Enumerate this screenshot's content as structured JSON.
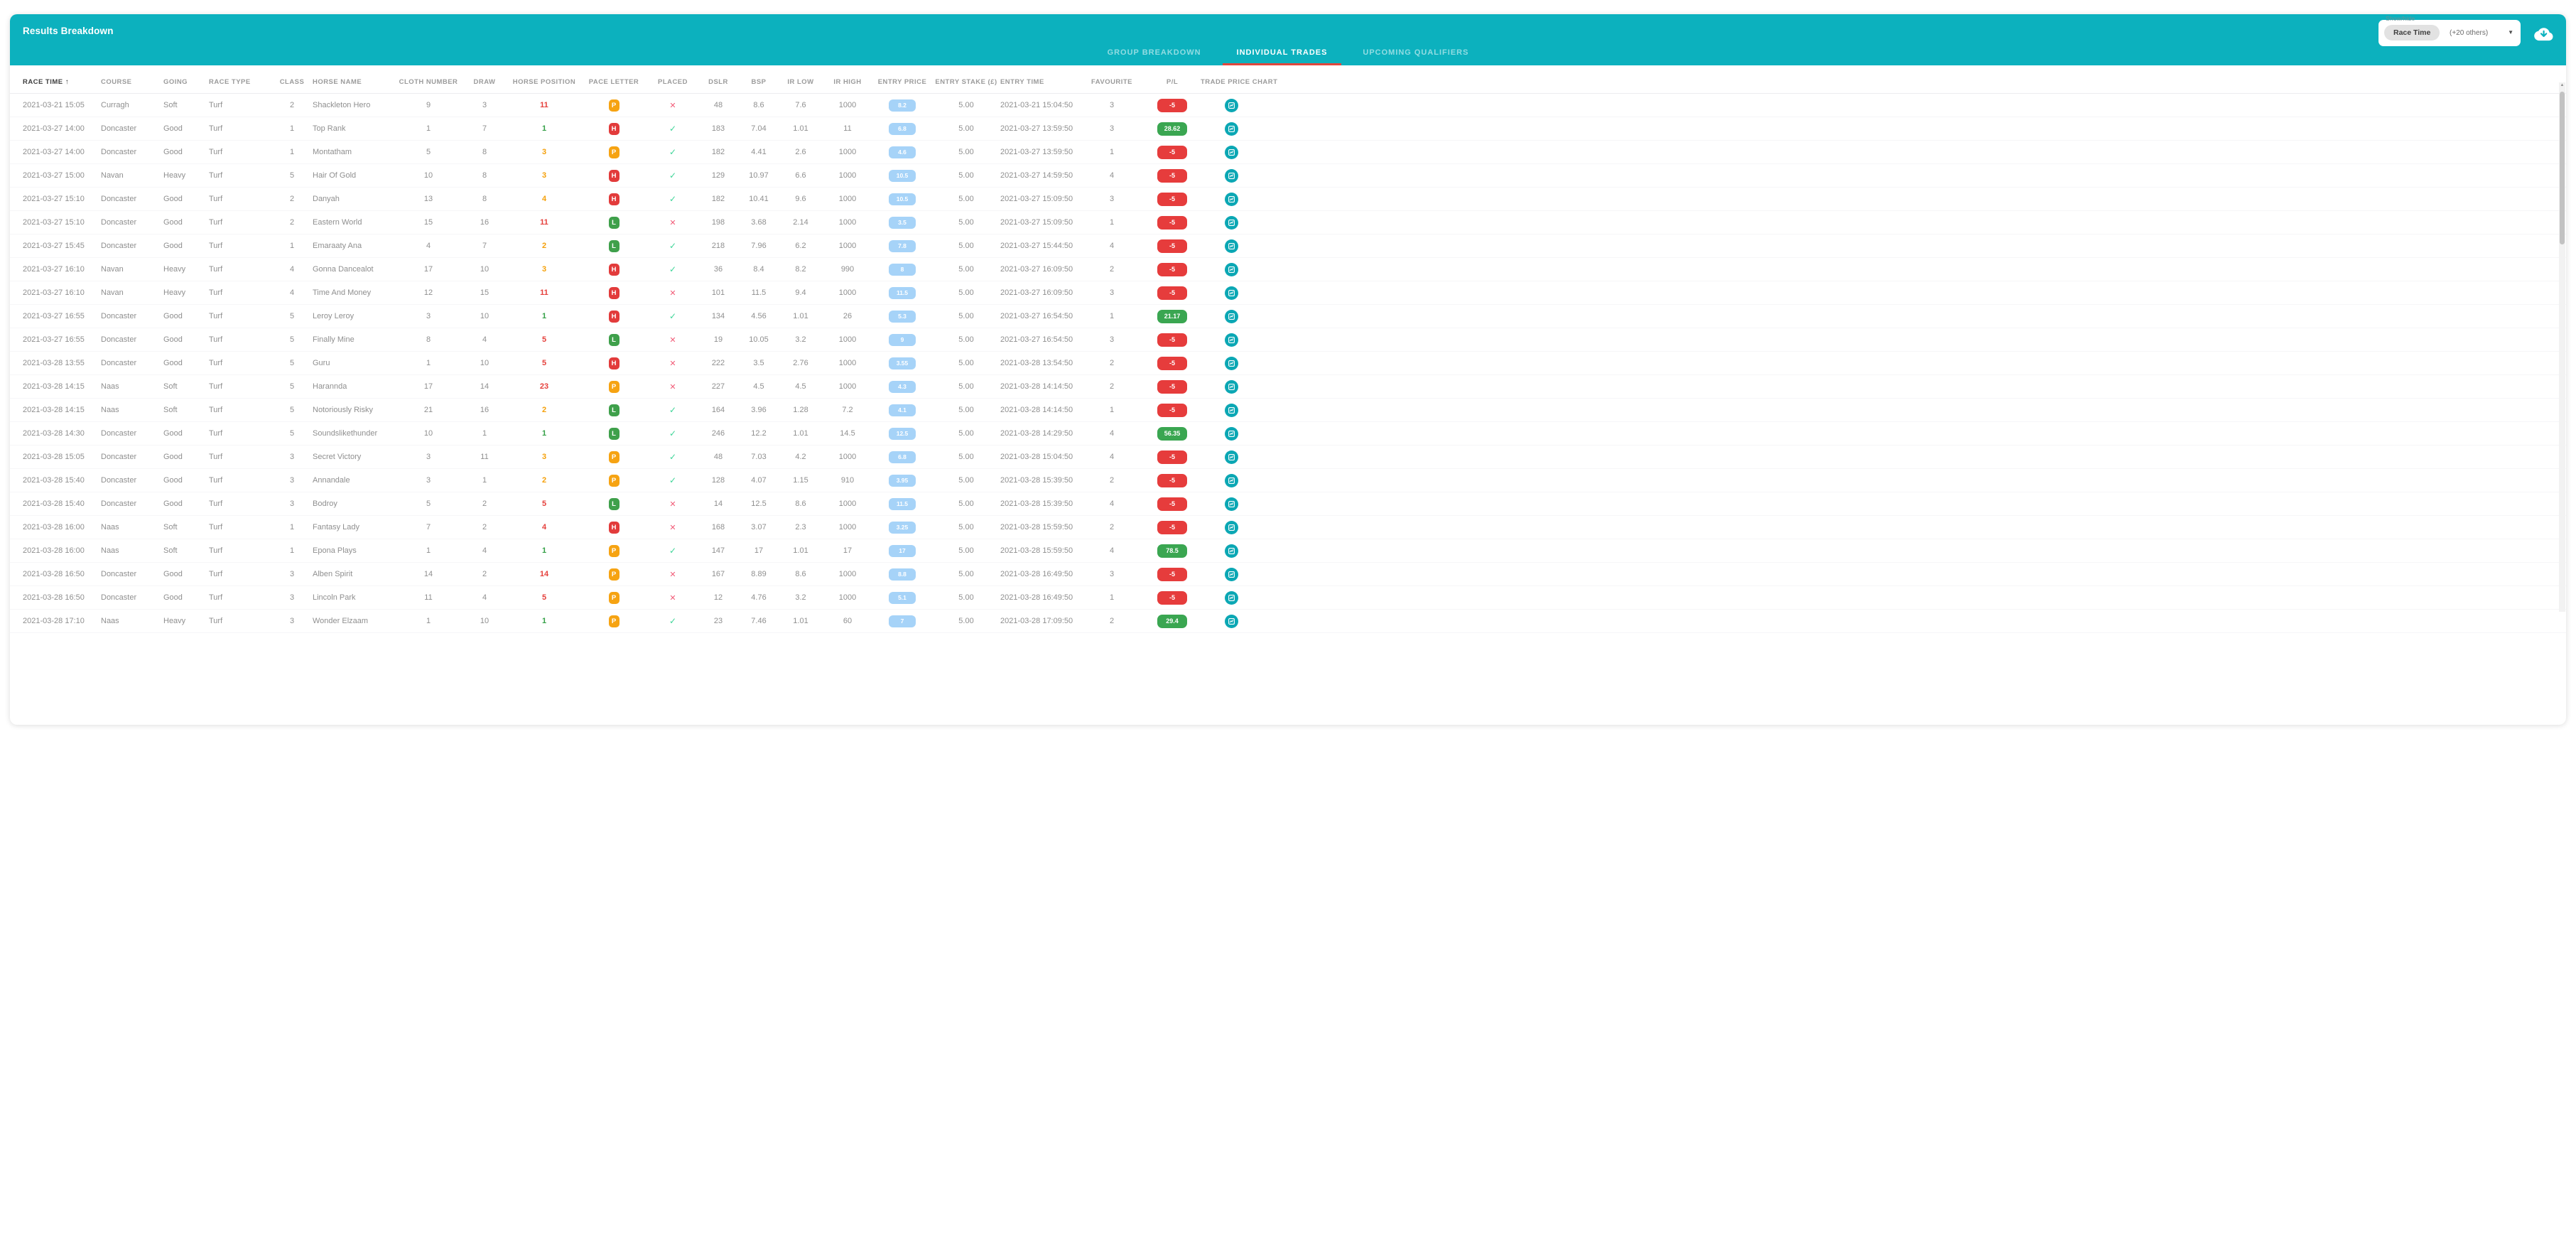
{
  "header": {
    "title": "Results Breakdown"
  },
  "show_hide": {
    "label": "Show/hide",
    "selected_chip": "Race Time",
    "others_text": "(+20 others)",
    "caret_icon": "caret-down",
    "chip_bg": "#e2e2e2"
  },
  "toolbar": {
    "download_icon": "cloud-download"
  },
  "tabs": [
    {
      "label": "GROUP BREAKDOWN",
      "active": false
    },
    {
      "label": "INDIVIDUAL TRADES",
      "active": true
    },
    {
      "label": "UPCOMING QUALIFIERS",
      "active": false
    }
  ],
  "colors": {
    "accent_teal": "#0cb1be",
    "tab_underline": "#e0473d",
    "position_green": "#35a047",
    "position_orange": "#f5a00a",
    "position_red": "#e5403c",
    "pace_P": "#f6a312",
    "pace_H": "#e23b3b",
    "pace_L": "#3fa04b",
    "check_green": "#3ed598",
    "cross_pink": "#f25c78",
    "entry_price_blue": "#a6d3f8",
    "pl_red": "#e63c3c",
    "pl_green": "#3aa651",
    "chart_icon_teal": "#0ba7b4"
  },
  "table": {
    "sort": {
      "column": "RACE TIME",
      "direction": "asc"
    },
    "columns": [
      {
        "key": "race_time",
        "label": "RACE TIME",
        "align": "left",
        "sorted": true
      },
      {
        "key": "course",
        "label": "COURSE",
        "align": "left"
      },
      {
        "key": "going",
        "label": "GOING",
        "align": "left"
      },
      {
        "key": "race_type",
        "label": "RACE TYPE",
        "align": "left"
      },
      {
        "key": "class",
        "label": "CLASS",
        "align": "center"
      },
      {
        "key": "horse",
        "label": "HORSE NAME",
        "align": "left"
      },
      {
        "key": "cloth",
        "label": "CLOTH NUMBER",
        "align": "center"
      },
      {
        "key": "draw",
        "label": "DRAW",
        "align": "center"
      },
      {
        "key": "position",
        "label": "HORSE POSITION",
        "align": "center"
      },
      {
        "key": "pace",
        "label": "PACE LETTER",
        "align": "center"
      },
      {
        "key": "placed",
        "label": "PLACED",
        "align": "center"
      },
      {
        "key": "dslr",
        "label": "DSLR",
        "align": "center"
      },
      {
        "key": "bsp",
        "label": "BSP",
        "align": "center"
      },
      {
        "key": "ir_low",
        "label": "IR LOW",
        "align": "center"
      },
      {
        "key": "ir_high",
        "label": "IR HIGH",
        "align": "center"
      },
      {
        "key": "entry_price",
        "label": "ENTRY PRICE",
        "align": "center"
      },
      {
        "key": "entry_stake",
        "label": "ENTRY STAKE (£)",
        "align": "center"
      },
      {
        "key": "entry_time",
        "label": "ENTRY TIME",
        "align": "left"
      },
      {
        "key": "favourite",
        "label": "FAVOURITE",
        "align": "center"
      },
      {
        "key": "pl",
        "label": "P/L",
        "align": "center"
      },
      {
        "key": "chart",
        "label": "TRADE PRICE CHART",
        "align": "center"
      }
    ],
    "rows": [
      {
        "race_time": "2021-03-21 15:05",
        "course": "Curragh",
        "going": "Soft",
        "race_type": "Turf",
        "class": "2",
        "horse": "Shackleton Hero",
        "cloth": "9",
        "draw": "3",
        "position": "11",
        "position_color": "red",
        "pace": "P",
        "placed": false,
        "dslr": "48",
        "bsp": "8.6",
        "ir_low": "7.6",
        "ir_high": "1000",
        "entry_price": "8.2",
        "entry_stake": "5.00",
        "entry_time": "2021-03-21 15:04:50",
        "favourite": "3",
        "pl": "-5"
      },
      {
        "race_time": "2021-03-27 14:00",
        "course": "Doncaster",
        "going": "Good",
        "race_type": "Turf",
        "class": "1",
        "horse": "Top Rank",
        "cloth": "1",
        "draw": "7",
        "position": "1",
        "position_color": "green",
        "pace": "H",
        "placed": true,
        "dslr": "183",
        "bsp": "7.04",
        "ir_low": "1.01",
        "ir_high": "11",
        "entry_price": "6.8",
        "entry_stake": "5.00",
        "entry_time": "2021-03-27 13:59:50",
        "favourite": "3",
        "pl": "28.62"
      },
      {
        "race_time": "2021-03-27 14:00",
        "course": "Doncaster",
        "going": "Good",
        "race_type": "Turf",
        "class": "1",
        "horse": "Montatham",
        "cloth": "5",
        "draw": "8",
        "position": "3",
        "position_color": "orange",
        "pace": "P",
        "placed": true,
        "dslr": "182",
        "bsp": "4.41",
        "ir_low": "2.6",
        "ir_high": "1000",
        "entry_price": "4.6",
        "entry_stake": "5.00",
        "entry_time": "2021-03-27 13:59:50",
        "favourite": "1",
        "pl": "-5"
      },
      {
        "race_time": "2021-03-27 15:00",
        "course": "Navan",
        "going": "Heavy",
        "race_type": "Turf",
        "class": "5",
        "horse": "Hair Of Gold",
        "cloth": "10",
        "draw": "8",
        "position": "3",
        "position_color": "orange",
        "pace": "H",
        "placed": true,
        "dslr": "129",
        "bsp": "10.97",
        "ir_low": "6.6",
        "ir_high": "1000",
        "entry_price": "10.5",
        "entry_stake": "5.00",
        "entry_time": "2021-03-27 14:59:50",
        "favourite": "4",
        "pl": "-5"
      },
      {
        "race_time": "2021-03-27 15:10",
        "course": "Doncaster",
        "going": "Good",
        "race_type": "Turf",
        "class": "2",
        "horse": "Danyah",
        "cloth": "13",
        "draw": "8",
        "position": "4",
        "position_color": "orange",
        "pace": "H",
        "placed": true,
        "dslr": "182",
        "bsp": "10.41",
        "ir_low": "9.6",
        "ir_high": "1000",
        "entry_price": "10.5",
        "entry_stake": "5.00",
        "entry_time": "2021-03-27 15:09:50",
        "favourite": "3",
        "pl": "-5"
      },
      {
        "race_time": "2021-03-27 15:10",
        "course": "Doncaster",
        "going": "Good",
        "race_type": "Turf",
        "class": "2",
        "horse": "Eastern World",
        "cloth": "15",
        "draw": "16",
        "position": "11",
        "position_color": "red",
        "pace": "L",
        "placed": false,
        "dslr": "198",
        "bsp": "3.68",
        "ir_low": "2.14",
        "ir_high": "1000",
        "entry_price": "3.5",
        "entry_stake": "5.00",
        "entry_time": "2021-03-27 15:09:50",
        "favourite": "1",
        "pl": "-5"
      },
      {
        "race_time": "2021-03-27 15:45",
        "course": "Doncaster",
        "going": "Good",
        "race_type": "Turf",
        "class": "1",
        "horse": "Emaraaty Ana",
        "cloth": "4",
        "draw": "7",
        "position": "2",
        "position_color": "orange",
        "pace": "L",
        "placed": true,
        "dslr": "218",
        "bsp": "7.96",
        "ir_low": "6.2",
        "ir_high": "1000",
        "entry_price": "7.8",
        "entry_stake": "5.00",
        "entry_time": "2021-03-27 15:44:50",
        "favourite": "4",
        "pl": "-5"
      },
      {
        "race_time": "2021-03-27 16:10",
        "course": "Navan",
        "going": "Heavy",
        "race_type": "Turf",
        "class": "4",
        "horse": "Gonna Dancealot",
        "cloth": "17",
        "draw": "10",
        "position": "3",
        "position_color": "orange",
        "pace": "H",
        "placed": true,
        "dslr": "36",
        "bsp": "8.4",
        "ir_low": "8.2",
        "ir_high": "990",
        "entry_price": "8",
        "entry_stake": "5.00",
        "entry_time": "2021-03-27 16:09:50",
        "favourite": "2",
        "pl": "-5"
      },
      {
        "race_time": "2021-03-27 16:10",
        "course": "Navan",
        "going": "Heavy",
        "race_type": "Turf",
        "class": "4",
        "horse": "Time And Money",
        "cloth": "12",
        "draw": "15",
        "position": "11",
        "position_color": "red",
        "pace": "H",
        "placed": false,
        "dslr": "101",
        "bsp": "11.5",
        "ir_low": "9.4",
        "ir_high": "1000",
        "entry_price": "11.5",
        "entry_stake": "5.00",
        "entry_time": "2021-03-27 16:09:50",
        "favourite": "3",
        "pl": "-5"
      },
      {
        "race_time": "2021-03-27 16:55",
        "course": "Doncaster",
        "going": "Good",
        "race_type": "Turf",
        "class": "5",
        "horse": "Leroy Leroy",
        "cloth": "3",
        "draw": "10",
        "position": "1",
        "position_color": "green",
        "pace": "H",
        "placed": true,
        "dslr": "134",
        "bsp": "4.56",
        "ir_low": "1.01",
        "ir_high": "26",
        "entry_price": "5.3",
        "entry_stake": "5.00",
        "entry_time": "2021-03-27 16:54:50",
        "favourite": "1",
        "pl": "21.17"
      },
      {
        "race_time": "2021-03-27 16:55",
        "course": "Doncaster",
        "going": "Good",
        "race_type": "Turf",
        "class": "5",
        "horse": "Finally Mine",
        "cloth": "8",
        "draw": "4",
        "position": "5",
        "position_color": "red",
        "pace": "L",
        "placed": false,
        "dslr": "19",
        "bsp": "10.05",
        "ir_low": "3.2",
        "ir_high": "1000",
        "entry_price": "9",
        "entry_stake": "5.00",
        "entry_time": "2021-03-27 16:54:50",
        "favourite": "3",
        "pl": "-5"
      },
      {
        "race_time": "2021-03-28 13:55",
        "course": "Doncaster",
        "going": "Good",
        "race_type": "Turf",
        "class": "5",
        "horse": "Guru",
        "cloth": "1",
        "draw": "10",
        "position": "5",
        "position_color": "red",
        "pace": "H",
        "placed": false,
        "dslr": "222",
        "bsp": "3.5",
        "ir_low": "2.76",
        "ir_high": "1000",
        "entry_price": "3.55",
        "entry_stake": "5.00",
        "entry_time": "2021-03-28 13:54:50",
        "favourite": "2",
        "pl": "-5"
      },
      {
        "race_time": "2021-03-28 14:15",
        "course": "Naas",
        "going": "Soft",
        "race_type": "Turf",
        "class": "5",
        "horse": "Harannda",
        "cloth": "17",
        "draw": "14",
        "position": "23",
        "position_color": "red",
        "pace": "P",
        "placed": false,
        "dslr": "227",
        "bsp": "4.5",
        "ir_low": "4.5",
        "ir_high": "1000",
        "entry_price": "4.3",
        "entry_stake": "5.00",
        "entry_time": "2021-03-28 14:14:50",
        "favourite": "2",
        "pl": "-5"
      },
      {
        "race_time": "2021-03-28 14:15",
        "course": "Naas",
        "going": "Soft",
        "race_type": "Turf",
        "class": "5",
        "horse": "Notoriously Risky",
        "cloth": "21",
        "draw": "16",
        "position": "2",
        "position_color": "orange",
        "pace": "L",
        "placed": true,
        "dslr": "164",
        "bsp": "3.96",
        "ir_low": "1.28",
        "ir_high": "7.2",
        "entry_price": "4.1",
        "entry_stake": "5.00",
        "entry_time": "2021-03-28 14:14:50",
        "favourite": "1",
        "pl": "-5"
      },
      {
        "race_time": "2021-03-28 14:30",
        "course": "Doncaster",
        "going": "Good",
        "race_type": "Turf",
        "class": "5",
        "horse": "Soundslikethunder",
        "cloth": "10",
        "draw": "1",
        "position": "1",
        "position_color": "green",
        "pace": "L",
        "placed": true,
        "dslr": "246",
        "bsp": "12.2",
        "ir_low": "1.01",
        "ir_high": "14.5",
        "entry_price": "12.5",
        "entry_stake": "5.00",
        "entry_time": "2021-03-28 14:29:50",
        "favourite": "4",
        "pl": "56.35"
      },
      {
        "race_time": "2021-03-28 15:05",
        "course": "Doncaster",
        "going": "Good",
        "race_type": "Turf",
        "class": "3",
        "horse": "Secret Victory",
        "cloth": "3",
        "draw": "11",
        "position": "3",
        "position_color": "orange",
        "pace": "P",
        "placed": true,
        "dslr": "48",
        "bsp": "7.03",
        "ir_low": "4.2",
        "ir_high": "1000",
        "entry_price": "6.8",
        "entry_stake": "5.00",
        "entry_time": "2021-03-28 15:04:50",
        "favourite": "4",
        "pl": "-5"
      },
      {
        "race_time": "2021-03-28 15:40",
        "course": "Doncaster",
        "going": "Good",
        "race_type": "Turf",
        "class": "3",
        "horse": "Annandale",
        "cloth": "3",
        "draw": "1",
        "position": "2",
        "position_color": "orange",
        "pace": "P",
        "placed": true,
        "dslr": "128",
        "bsp": "4.07",
        "ir_low": "1.15",
        "ir_high": "910",
        "entry_price": "3.95",
        "entry_stake": "5.00",
        "entry_time": "2021-03-28 15:39:50",
        "favourite": "2",
        "pl": "-5"
      },
      {
        "race_time": "2021-03-28 15:40",
        "course": "Doncaster",
        "going": "Good",
        "race_type": "Turf",
        "class": "3",
        "horse": "Bodroy",
        "cloth": "5",
        "draw": "2",
        "position": "5",
        "position_color": "red",
        "pace": "L",
        "placed": false,
        "dslr": "14",
        "bsp": "12.5",
        "ir_low": "8.6",
        "ir_high": "1000",
        "entry_price": "11.5",
        "entry_stake": "5.00",
        "entry_time": "2021-03-28 15:39:50",
        "favourite": "4",
        "pl": "-5"
      },
      {
        "race_time": "2021-03-28 16:00",
        "course": "Naas",
        "going": "Soft",
        "race_type": "Turf",
        "class": "1",
        "horse": "Fantasy Lady",
        "cloth": "7",
        "draw": "2",
        "position": "4",
        "position_color": "red",
        "pace": "H",
        "placed": false,
        "dslr": "168",
        "bsp": "3.07",
        "ir_low": "2.3",
        "ir_high": "1000",
        "entry_price": "3.25",
        "entry_stake": "5.00",
        "entry_time": "2021-03-28 15:59:50",
        "favourite": "2",
        "pl": "-5"
      },
      {
        "race_time": "2021-03-28 16:00",
        "course": "Naas",
        "going": "Soft",
        "race_type": "Turf",
        "class": "1",
        "horse": "Epona Plays",
        "cloth": "1",
        "draw": "4",
        "position": "1",
        "position_color": "green",
        "pace": "P",
        "placed": true,
        "dslr": "147",
        "bsp": "17",
        "ir_low": "1.01",
        "ir_high": "17",
        "entry_price": "17",
        "entry_stake": "5.00",
        "entry_time": "2021-03-28 15:59:50",
        "favourite": "4",
        "pl": "78.5"
      },
      {
        "race_time": "2021-03-28 16:50",
        "course": "Doncaster",
        "going": "Good",
        "race_type": "Turf",
        "class": "3",
        "horse": "Alben Spirit",
        "cloth": "14",
        "draw": "2",
        "position": "14",
        "position_color": "red",
        "pace": "P",
        "placed": false,
        "dslr": "167",
        "bsp": "8.89",
        "ir_low": "8.6",
        "ir_high": "1000",
        "entry_price": "8.8",
        "entry_stake": "5.00",
        "entry_time": "2021-03-28 16:49:50",
        "favourite": "3",
        "pl": "-5"
      },
      {
        "race_time": "2021-03-28 16:50",
        "course": "Doncaster",
        "going": "Good",
        "race_type": "Turf",
        "class": "3",
        "horse": "Lincoln Park",
        "cloth": "11",
        "draw": "4",
        "position": "5",
        "position_color": "red",
        "pace": "P",
        "placed": false,
        "dslr": "12",
        "bsp": "4.76",
        "ir_low": "3.2",
        "ir_high": "1000",
        "entry_price": "5.1",
        "entry_stake": "5.00",
        "entry_time": "2021-03-28 16:49:50",
        "favourite": "1",
        "pl": "-5"
      },
      {
        "race_time": "2021-03-28 17:10",
        "course": "Naas",
        "going": "Heavy",
        "race_type": "Turf",
        "class": "3",
        "horse": "Wonder Elzaam",
        "cloth": "1",
        "draw": "10",
        "position": "1",
        "position_color": "green",
        "pace": "P",
        "placed": true,
        "dslr": "23",
        "bsp": "7.46",
        "ir_low": "1.01",
        "ir_high": "60",
        "entry_price": "7",
        "entry_stake": "5.00",
        "entry_time": "2021-03-28 17:09:50",
        "favourite": "2",
        "pl": "29.4"
      }
    ]
  }
}
